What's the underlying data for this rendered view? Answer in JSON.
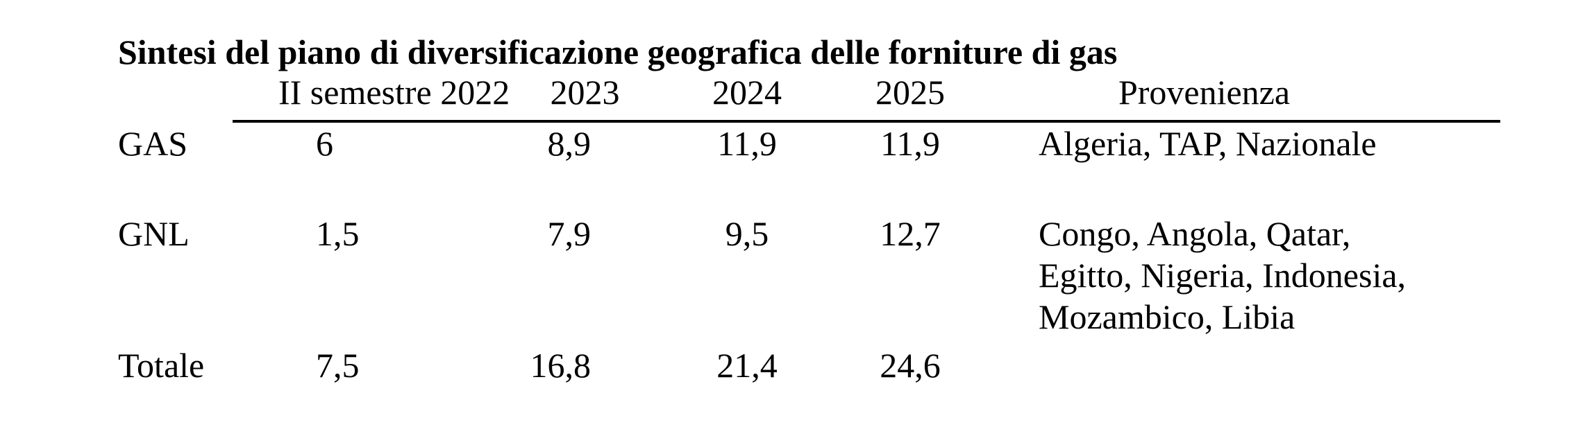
{
  "title": "Sintesi del piano di diversificazione geografica delle forniture di gas",
  "table": {
    "headers": {
      "label": "",
      "sem2022": "II semestre 2022",
      "y2023": "2023",
      "y2024": "2024",
      "y2025": "2025",
      "provenance": "Provenienza"
    },
    "rows": [
      {
        "label": "GAS",
        "sem2022": "6",
        "y2023": "8,9",
        "y2024": "11,9",
        "y2025": "11,9",
        "provenance": "Algeria, TAP, Nazionale"
      },
      {
        "label": "GNL",
        "sem2022": "1,5",
        "y2023": "7,9",
        "y2024": "9,5",
        "y2025": "12,7",
        "provenance": "Congo, Angola, Qatar, Egitto, Nigeria, Indonesia, Mozambico, Libia"
      },
      {
        "label": "Totale",
        "sem2022": "7,5",
        "y2023": "16,8",
        "y2024": "21,4",
        "y2025": "24,6",
        "provenance": ""
      }
    ]
  }
}
